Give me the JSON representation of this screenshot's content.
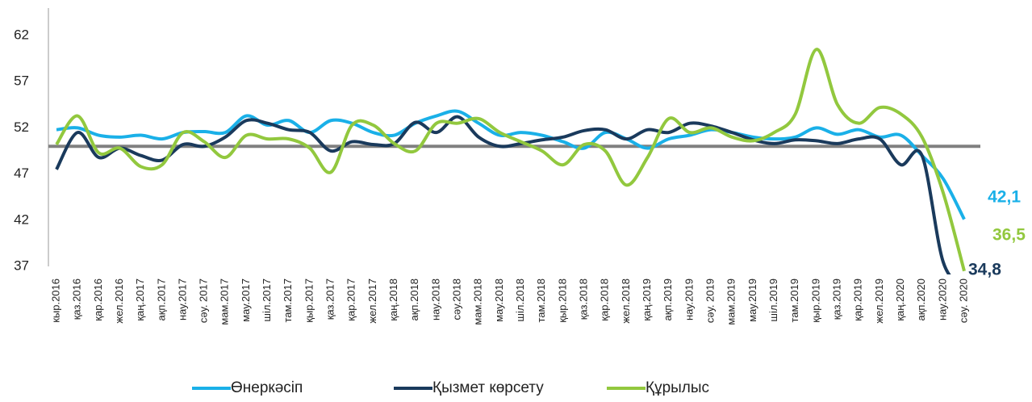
{
  "chart_data": {
    "type": "line",
    "categories": [
      "кыр.2016",
      "қаз.2016",
      "қар.2016",
      "жел.2016",
      "қаң.2017",
      "ақп.2017",
      "нау.2017",
      "сәу. 2017",
      "мам.2017",
      "мау.2017",
      "шіл.2017",
      "там.2017",
      "қыр.2017",
      "қаз.2017",
      "қар.2017",
      "жел.2017",
      "қаң.2018",
      "ақп.2018",
      "нау.2018",
      "сәу.2018",
      "мам.2018",
      "мау.2018",
      "шіл.2018",
      "там.2018",
      "қыр.2018",
      "қаз.2018",
      "қар.2018",
      "жел.2018",
      "қаң.2019",
      "ақп.2019",
      "нау.2019",
      "сәу. 2019",
      "мам.2019",
      "мау.2019",
      "шіл.2019",
      "там.2019",
      "қыр.2019",
      "қаз.2019",
      "қар.2019",
      "жел.2019",
      "қаң.2020",
      "ақп.2020",
      "нау.2020",
      "сәу. 2020"
    ],
    "series": [
      {
        "name": "Өнеркәсіп",
        "color": "#1ab0e8",
        "values": [
          51.8,
          52.0,
          51.2,
          51.0,
          51.2,
          50.8,
          51.5,
          51.6,
          51.5,
          53.3,
          52.3,
          52.8,
          51.5,
          52.8,
          52.5,
          51.5,
          51.2,
          52.5,
          53.3,
          53.8,
          52.5,
          51.2,
          51.5,
          51.2,
          50.5,
          49.8,
          51.5,
          50.8,
          49.8,
          50.8,
          51.2,
          51.8,
          51.5,
          51.0,
          50.8,
          51.0,
          52.0,
          51.3,
          51.8,
          51.0,
          51.2,
          49.0,
          46.5,
          42.1
        ],
        "value_labels": [
          null,
          null,
          null,
          null,
          null,
          null,
          null,
          null,
          null,
          null,
          null,
          null,
          null,
          null,
          null,
          null,
          null,
          null,
          null,
          null,
          null,
          null,
          null,
          null,
          null,
          null,
          null,
          null,
          null,
          null,
          null,
          null,
          null,
          null,
          null,
          null,
          null,
          null,
          null,
          null,
          null,
          null,
          null,
          "42,1"
        ]
      },
      {
        "name": "Қызмет көрсету",
        "color": "#1a3a5c",
        "values": [
          47.5,
          51.5,
          48.8,
          49.8,
          49.0,
          48.5,
          50.2,
          50.0,
          51.0,
          52.8,
          52.5,
          51.8,
          51.5,
          49.5,
          50.5,
          50.2,
          50.3,
          52.6,
          51.5,
          53.2,
          51.0,
          50.0,
          50.3,
          50.7,
          51.0,
          51.7,
          51.8,
          50.8,
          51.8,
          51.5,
          52.5,
          52.2,
          51.5,
          50.7,
          50.3,
          50.7,
          50.6,
          50.3,
          50.8,
          50.8,
          48.0,
          49.0,
          37.5,
          34.8
        ],
        "value_labels": [
          null,
          null,
          null,
          null,
          null,
          null,
          null,
          null,
          null,
          null,
          null,
          null,
          null,
          null,
          null,
          null,
          null,
          null,
          null,
          null,
          null,
          null,
          null,
          null,
          null,
          null,
          null,
          null,
          null,
          null,
          null,
          null,
          null,
          null,
          null,
          null,
          null,
          null,
          null,
          null,
          null,
          null,
          null,
          "34,8"
        ]
      },
      {
        "name": "Құрылыс",
        "color": "#92c83e",
        "values": [
          50.2,
          53.3,
          49.3,
          49.8,
          47.8,
          48.0,
          51.5,
          50.5,
          48.8,
          51.2,
          50.8,
          50.8,
          49.8,
          47.2,
          52.3,
          52.3,
          50.3,
          49.5,
          52.5,
          52.5,
          53.0,
          51.5,
          50.5,
          49.5,
          48.0,
          50.2,
          49.5,
          45.8,
          48.8,
          53.0,
          51.5,
          52.0,
          51.0,
          50.6,
          51.5,
          53.5,
          60.5,
          54.5,
          52.5,
          54.2,
          53.5,
          51.0,
          45.0,
          36.5
        ],
        "value_labels": [
          null,
          null,
          null,
          null,
          null,
          null,
          null,
          null,
          null,
          null,
          null,
          null,
          null,
          null,
          null,
          null,
          null,
          null,
          null,
          null,
          null,
          null,
          null,
          null,
          null,
          null,
          null,
          null,
          null,
          null,
          null,
          null,
          null,
          null,
          null,
          null,
          null,
          null,
          null,
          null,
          null,
          null,
          null,
          "36,5"
        ]
      }
    ],
    "reference_line": 50,
    "reference_color": "#808080",
    "ylim": [
      37,
      65
    ],
    "yticks": [
      37,
      42,
      47,
      52,
      57,
      62
    ],
    "grid": false,
    "legend": "bottom"
  }
}
